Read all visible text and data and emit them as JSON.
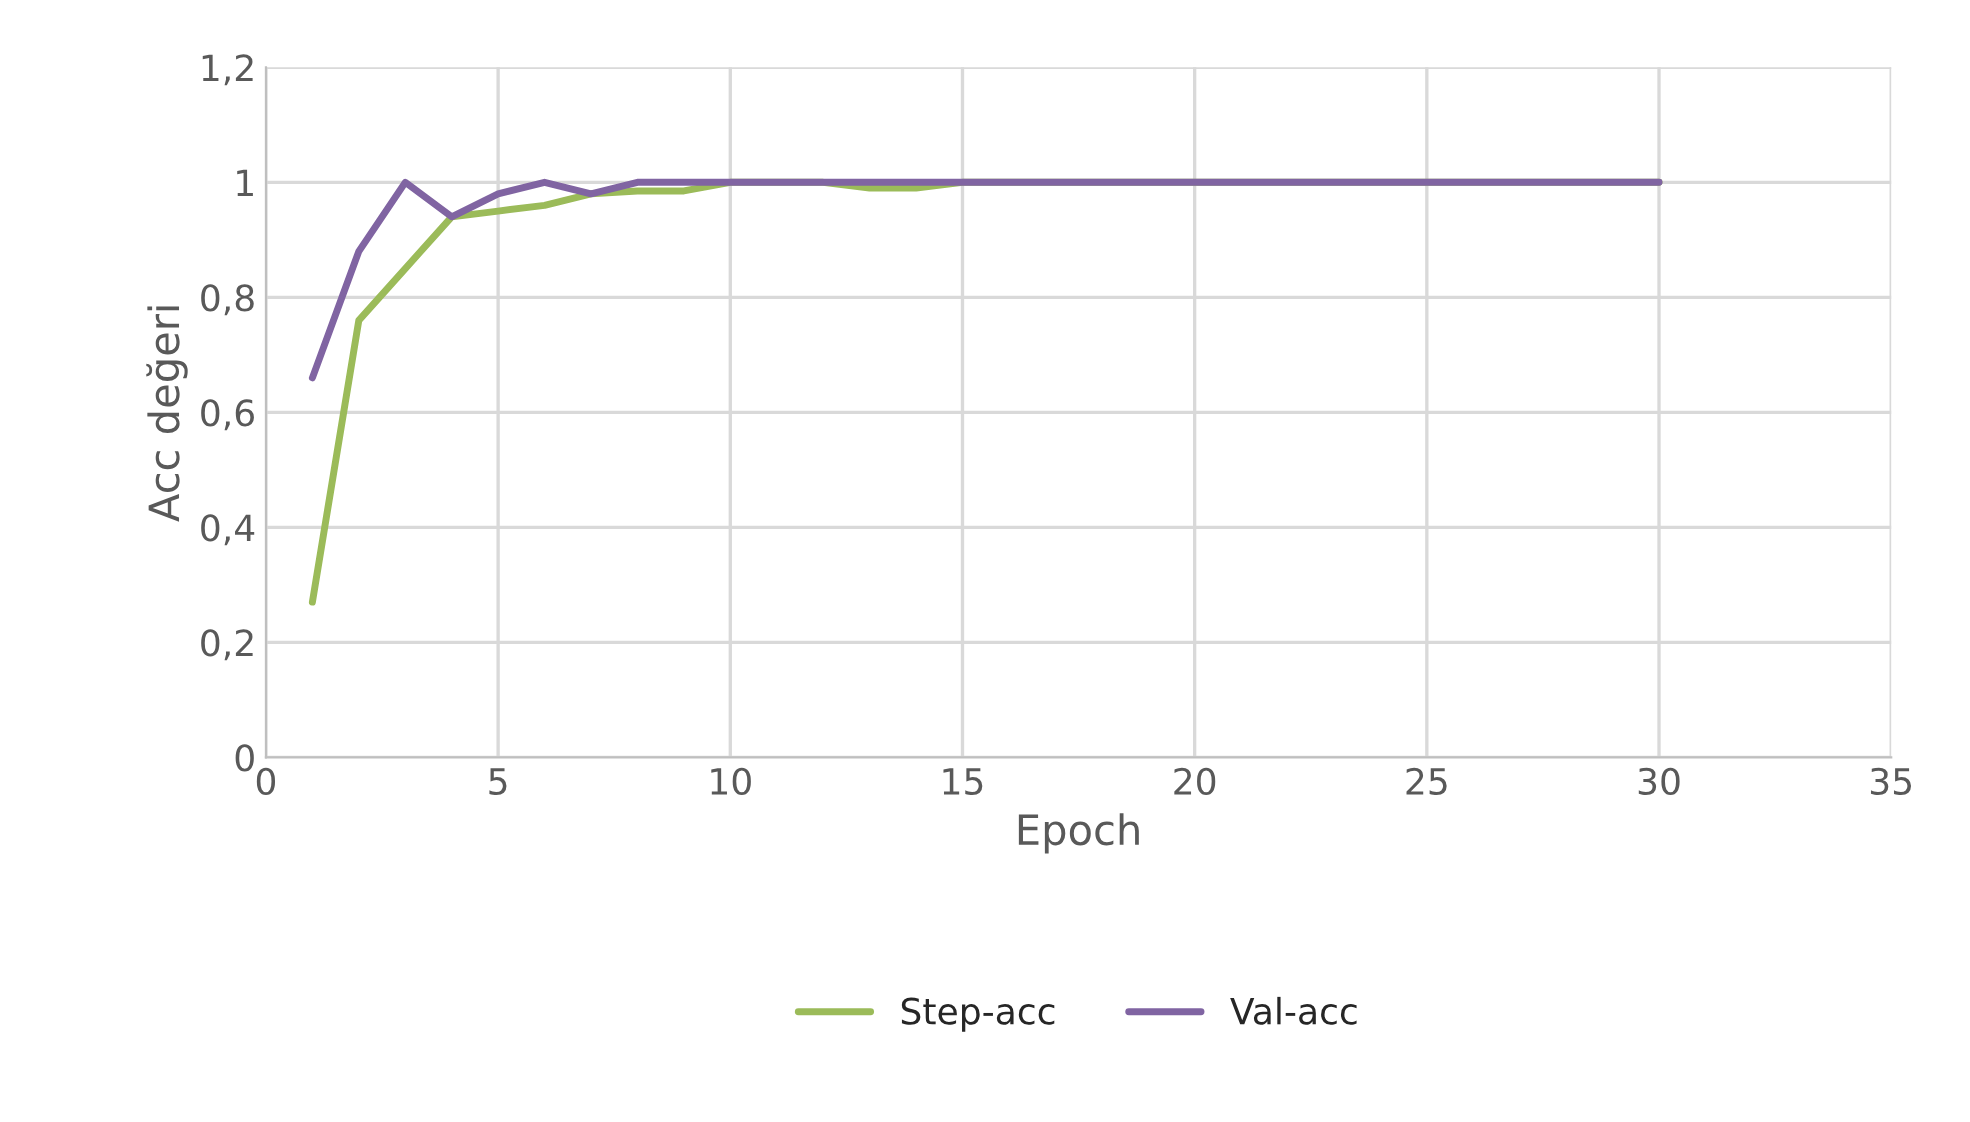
{
  "chart_data": {
    "type": "line",
    "xlabel": "Epoch",
    "ylabel": "Acc değeri",
    "xlim": [
      0,
      35
    ],
    "xticks": [
      0,
      5,
      10,
      15,
      20,
      25,
      30,
      35
    ],
    "ylim": [
      0,
      1.2
    ],
    "yticks": [
      {
        "value": 0,
        "label": "0"
      },
      {
        "value": 0.2,
        "label": "0,2"
      },
      {
        "value": 0.4,
        "label": "0,4"
      },
      {
        "value": 0.6,
        "label": "0,6"
      },
      {
        "value": 0.8,
        "label": "0,8"
      },
      {
        "value": 1,
        "label": "1"
      },
      {
        "value": 1.2,
        "label": "1,2"
      }
    ],
    "grid": true,
    "legend": "bottom",
    "marker": "none",
    "line_style": "solid",
    "x": [
      1,
      2,
      3,
      4,
      5,
      6,
      7,
      8,
      9,
      10,
      11,
      12,
      13,
      14,
      15,
      16,
      17,
      18,
      19,
      20,
      21,
      22,
      23,
      24,
      25,
      26,
      27,
      28,
      29,
      30
    ],
    "series": [
      {
        "name": "Step-acc",
        "color": "#9bbb59",
        "values": [
          0.27,
          0.76,
          0.85,
          0.94,
          0.95,
          0.96,
          0.98,
          0.985,
          0.985,
          1,
          1,
          1,
          0.99,
          0.99,
          1,
          1,
          1,
          1,
          1,
          1,
          1,
          1,
          1,
          1,
          1,
          1,
          1,
          1,
          1,
          1
        ]
      },
      {
        "name": "Val-acc",
        "color": "#8064a2",
        "values": [
          0.66,
          0.88,
          1,
          0.94,
          0.98,
          1,
          0.98,
          1,
          1,
          1,
          1,
          1,
          1,
          1,
          1,
          1,
          1,
          1,
          1,
          1,
          1,
          1,
          1,
          1,
          1,
          1,
          1,
          1,
          1,
          1
        ]
      }
    ]
  }
}
